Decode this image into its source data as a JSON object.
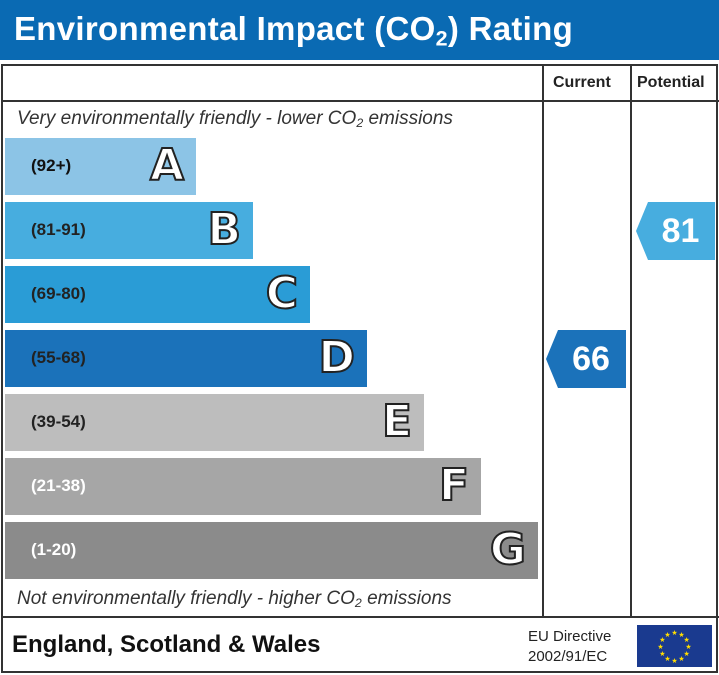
{
  "header": {
    "title": "Environmental Impact (CO",
    "title_sub": "2",
    "title_end": ") Rating"
  },
  "columns": {
    "current": "Current",
    "potential": "Potential"
  },
  "notes": {
    "top": "Very environmentally friendly - lower CO",
    "top_end": " emissions",
    "bottom": "Not environmentally friendly - higher CO",
    "bottom_end": " emissions",
    "sub": "2"
  },
  "chart_data": {
    "type": "bar",
    "bands": [
      {
        "letter": "A",
        "range": "(92+)",
        "color": "#8cc4e6",
        "text_color": "#111"
      },
      {
        "letter": "B",
        "range": "(81-91)",
        "color": "#47addf",
        "text_color": "#222"
      },
      {
        "letter": "C",
        "range": "(69-80)",
        "color": "#2a9cd6",
        "text_color": "#222"
      },
      {
        "letter": "D",
        "range": "(55-68)",
        "color": "#1b72ba",
        "text_color": "#222"
      },
      {
        "letter": "E",
        "range": "(39-54)",
        "color": "#bdbdbd",
        "text_color": "#222"
      },
      {
        "letter": "F",
        "range": "(21-38)",
        "color": "#a6a6a6",
        "text_color": "#fff"
      },
      {
        "letter": "G",
        "range": "(1-20)",
        "color": "#8b8b8b",
        "text_color": "#fff"
      }
    ],
    "current": {
      "value": "66",
      "band": "D",
      "color": "#1b72ba"
    },
    "potential": {
      "value": "81",
      "band": "B",
      "color": "#47addf"
    }
  },
  "footer": {
    "region": "England, Scotland & Wales",
    "directive_line1": "EU Directive",
    "directive_line2": "2002/91/EC",
    "flag_icon": "eu-flag-icon"
  }
}
